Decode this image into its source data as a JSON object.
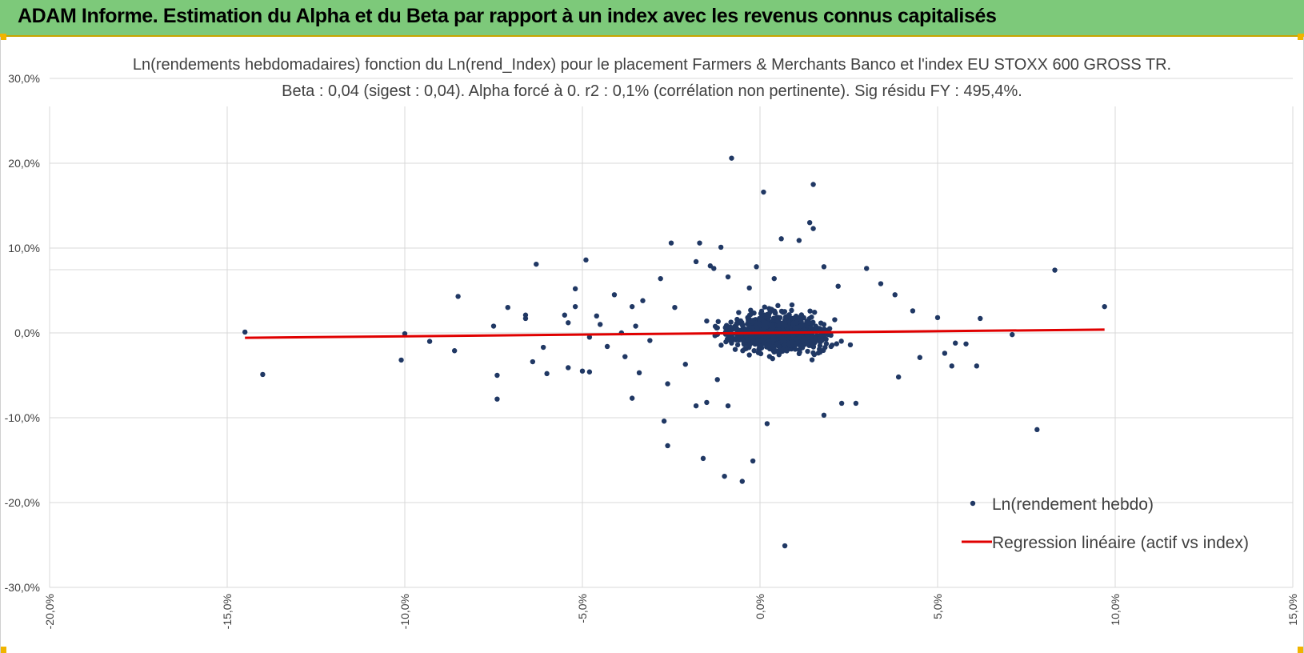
{
  "header": {
    "title": "ADAM Informe. Estimation du Alpha et du Beta par rapport à un index avec les revenus connus capitalisés"
  },
  "chart_data": {
    "type": "scatter",
    "title": "Ln(rendements hebdomadaires) fonction du Ln(rend_Index) pour le placement Farmers & Merchants Banco et l'index EU STOXX 600 GROSS TR.",
    "subtitle": "Beta : 0,04 (sigest : 0,04).  Alpha forcé à 0. r2 : 0,1% (corrélation non pertinente). Sig résidu FY : 495,4%.",
    "xlim": [
      -0.2,
      0.15
    ],
    "ylim": [
      -0.3,
      0.3
    ],
    "x_ticks": [
      -0.2,
      -0.15,
      -0.1,
      -0.05,
      0.0,
      0.05,
      0.1,
      0.15
    ],
    "x_tick_labels": [
      "-20,0%",
      "-15,0%",
      "-10,0%",
      "-5,0%",
      "0,0%",
      "5,0%",
      "10,0%",
      "15,0%"
    ],
    "y_ticks": [
      0.3,
      0.2,
      0.1,
      0.0,
      -0.1,
      -0.2,
      -0.3
    ],
    "y_tick_labels": [
      "30,0%",
      "20,0%",
      "10,0%",
      "0,0%",
      "-10,0%",
      "-20,0%",
      "-30,0%"
    ],
    "grid": true,
    "legend_position": "bottom-right",
    "colors": {
      "scatter": "#203864",
      "regression": "#e00000"
    },
    "series": [
      {
        "name": "Ln(rendement hebdo)",
        "kind": "scatter",
        "points": [
          [
            -0.145,
            0.001
          ],
          [
            -0.14,
            -0.049
          ],
          [
            -0.1,
            -0.001
          ],
          [
            -0.101,
            -0.032
          ],
          [
            -0.093,
            -0.01
          ],
          [
            -0.085,
            0.043
          ],
          [
            -0.086,
            -0.021
          ],
          [
            -0.075,
            0.008
          ],
          [
            -0.074,
            -0.05
          ],
          [
            -0.074,
            -0.078
          ],
          [
            -0.071,
            0.03
          ],
          [
            -0.066,
            0.021
          ],
          [
            -0.066,
            0.017
          ],
          [
            -0.063,
            0.081
          ],
          [
            -0.064,
            -0.034
          ],
          [
            -0.061,
            -0.017
          ],
          [
            -0.06,
            -0.048
          ],
          [
            -0.055,
            0.021
          ],
          [
            -0.054,
            0.012
          ],
          [
            -0.054,
            -0.041
          ],
          [
            -0.052,
            0.052
          ],
          [
            -0.052,
            0.031
          ],
          [
            -0.049,
            0.086
          ],
          [
            -0.05,
            -0.045
          ],
          [
            -0.048,
            -0.005
          ],
          [
            -0.048,
            -0.046
          ],
          [
            -0.045,
            0.01
          ],
          [
            -0.046,
            0.02
          ],
          [
            -0.043,
            -0.016
          ],
          [
            -0.041,
            0.045
          ],
          [
            -0.039,
            0.0
          ],
          [
            -0.038,
            -0.028
          ],
          [
            -0.036,
            0.031
          ],
          [
            -0.036,
            -0.077
          ],
          [
            -0.035,
            0.008
          ],
          [
            -0.034,
            -0.047
          ],
          [
            -0.033,
            0.038
          ],
          [
            -0.031,
            -0.009
          ],
          [
            -0.028,
            0.064
          ],
          [
            -0.027,
            -0.104
          ],
          [
            -0.026,
            -0.133
          ],
          [
            -0.025,
            0.106
          ],
          [
            -0.026,
            -0.06
          ],
          [
            -0.024,
            0.03
          ],
          [
            -0.021,
            -0.037
          ],
          [
            -0.018,
            0.084
          ],
          [
            -0.017,
            0.106
          ],
          [
            -0.018,
            -0.086
          ],
          [
            -0.015,
            -0.082
          ],
          [
            -0.016,
            -0.148
          ],
          [
            -0.013,
            0.076
          ],
          [
            -0.014,
            0.079
          ],
          [
            -0.011,
            0.101
          ],
          [
            -0.012,
            -0.055
          ],
          [
            -0.01,
            -0.169
          ],
          [
            -0.009,
            0.066
          ],
          [
            -0.009,
            -0.086
          ],
          [
            -0.008,
            0.206
          ],
          [
            -0.006,
            0.024
          ],
          [
            -0.005,
            -0.175
          ],
          [
            -0.003,
            0.053
          ],
          [
            -0.002,
            -0.151
          ],
          [
            -0.001,
            0.078
          ],
          [
            0.001,
            0.166
          ],
          [
            0.002,
            -0.107
          ],
          [
            0.004,
            0.064
          ],
          [
            0.006,
            0.111
          ],
          [
            0.007,
            -0.251
          ],
          [
            0.011,
            0.109
          ],
          [
            0.014,
            0.13
          ],
          [
            0.015,
            0.175
          ],
          [
            0.015,
            0.123
          ],
          [
            0.018,
            0.078
          ],
          [
            0.018,
            -0.097
          ],
          [
            0.022,
            0.055
          ],
          [
            0.023,
            -0.083
          ],
          [
            0.027,
            -0.083
          ],
          [
            0.03,
            0.076
          ],
          [
            0.034,
            0.058
          ],
          [
            0.038,
            0.045
          ],
          [
            0.039,
            -0.052
          ],
          [
            0.043,
            0.026
          ],
          [
            0.045,
            -0.029
          ],
          [
            0.05,
            0.018
          ],
          [
            0.052,
            -0.024
          ],
          [
            0.054,
            -0.039
          ],
          [
            0.055,
            -0.012
          ],
          [
            0.058,
            -0.013
          ],
          [
            0.061,
            -0.039
          ],
          [
            0.062,
            0.017
          ],
          [
            0.071,
            -0.002
          ],
          [
            0.078,
            -0.114
          ],
          [
            0.083,
            0.074
          ],
          [
            0.097,
            0.031
          ],
          [
            -0.005,
            0.004
          ],
          [
            0.0,
            -0.01
          ],
          [
            0.005,
            0.012
          ],
          [
            0.01,
            -0.004
          ],
          [
            0.008,
            0.02
          ],
          [
            -0.008,
            -0.012
          ],
          [
            0.012,
            0.018
          ],
          [
            -0.012,
            0.006
          ],
          [
            0.003,
            0.028
          ],
          [
            0.006,
            -0.022
          ],
          [
            0.015,
            -0.008
          ],
          [
            -0.003,
            -0.026
          ],
          [
            0.018,
            0.01
          ],
          [
            -0.015,
            0.014
          ],
          [
            0.02,
            -0.016
          ],
          [
            0.009,
            0.033
          ]
        ]
      },
      {
        "name": "Regression linéaire (actif vs index)",
        "kind": "line",
        "beta": 0.04,
        "alpha": 0,
        "x_range": [
          -0.145,
          0.097
        ]
      }
    ]
  }
}
